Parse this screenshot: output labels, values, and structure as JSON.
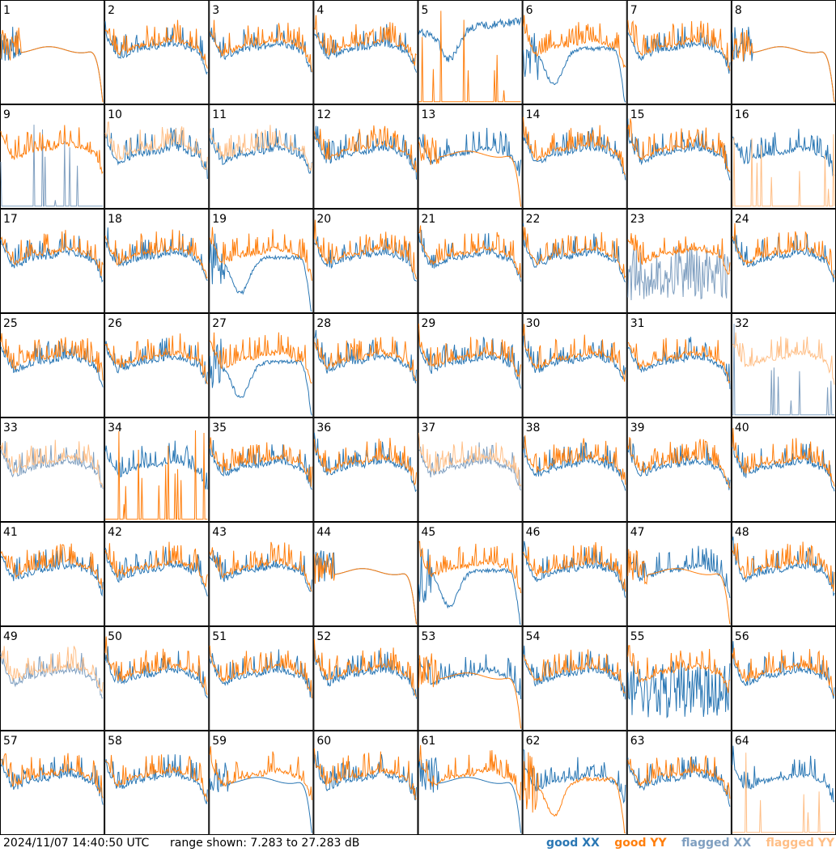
{
  "timestamp": "2024/11/07 14:40:50 UTC",
  "range_text": "range shown: 7.283 to 27.283 dB",
  "legend": {
    "good_xx": {
      "label": "good XX",
      "color": "#2a77b4"
    },
    "good_yy": {
      "label": "good YY",
      "color": "#ff7f0e"
    },
    "flagged_xx": {
      "label": "flagged XX",
      "color": "#7f9fc0"
    },
    "flagged_yy": {
      "label": "flagged YY",
      "color": "#ffbf87"
    }
  },
  "chart_data": {
    "type": "line",
    "title": "",
    "xlabel": "",
    "ylabel": "",
    "ylim": [
      7.283,
      27.283
    ],
    "grid_rows": 8,
    "grid_cols": 8,
    "series_names": [
      "good XX",
      "good YY",
      "flagged XX",
      "flagged YY"
    ],
    "panels": [
      {
        "id": "1",
        "xx": "good",
        "yy": "good",
        "yy_shape": "rolloff",
        "xx_shape": "rolloff"
      },
      {
        "id": "2",
        "xx": "good",
        "yy": "good"
      },
      {
        "id": "3",
        "xx": "good",
        "yy": "good"
      },
      {
        "id": "4",
        "xx": "good",
        "yy": "good"
      },
      {
        "id": "5",
        "xx": "good",
        "yy": "good",
        "xx_shape": "high",
        "yy_shape": "dead"
      },
      {
        "id": "6",
        "xx": "good",
        "yy": "good",
        "xx_shape": "dip"
      },
      {
        "id": "7",
        "xx": "good",
        "yy": "good"
      },
      {
        "id": "8",
        "xx": "good",
        "yy": "good",
        "yy_shape": "rolloff",
        "xx_shape": "rolloff"
      },
      {
        "id": "9",
        "xx": "flagged",
        "yy": "good",
        "xx_shape": "dead"
      },
      {
        "id": "10",
        "xx": "good",
        "yy": "flagged"
      },
      {
        "id": "11",
        "xx": "good",
        "yy": "flagged"
      },
      {
        "id": "12",
        "xx": "good",
        "yy": "good"
      },
      {
        "id": "13",
        "xx": "good",
        "yy": "good",
        "yy_shape": "rolloff"
      },
      {
        "id": "14",
        "xx": "good",
        "yy": "good"
      },
      {
        "id": "15",
        "xx": "good",
        "yy": "good"
      },
      {
        "id": "16",
        "xx": "good",
        "yy": "flagged",
        "yy_shape": "dead"
      },
      {
        "id": "17",
        "xx": "good",
        "yy": "good"
      },
      {
        "id": "18",
        "xx": "good",
        "yy": "good"
      },
      {
        "id": "19",
        "xx": "good",
        "yy": "good",
        "xx_shape": "dip"
      },
      {
        "id": "20",
        "xx": "good",
        "yy": "good"
      },
      {
        "id": "21",
        "xx": "good",
        "yy": "good"
      },
      {
        "id": "22",
        "xx": "good",
        "yy": "good"
      },
      {
        "id": "23",
        "xx": "flagged",
        "yy": "good",
        "xx_shape": "noisy"
      },
      {
        "id": "24",
        "xx": "good",
        "yy": "good"
      },
      {
        "id": "25",
        "xx": "good",
        "yy": "good"
      },
      {
        "id": "26",
        "xx": "good",
        "yy": "good"
      },
      {
        "id": "27",
        "xx": "good",
        "yy": "good",
        "xx_shape": "dip"
      },
      {
        "id": "28",
        "xx": "good",
        "yy": "good"
      },
      {
        "id": "29",
        "xx": "good",
        "yy": "good"
      },
      {
        "id": "30",
        "xx": "good",
        "yy": "good"
      },
      {
        "id": "31",
        "xx": "good",
        "yy": "good"
      },
      {
        "id": "32",
        "xx": "flagged",
        "yy": "flagged",
        "xx_shape": "dead"
      },
      {
        "id": "33",
        "xx": "flagged",
        "yy": "flagged"
      },
      {
        "id": "34",
        "xx": "good",
        "yy": "good",
        "yy_shape": "dead"
      },
      {
        "id": "35",
        "xx": "good",
        "yy": "good"
      },
      {
        "id": "36",
        "xx": "good",
        "yy": "good"
      },
      {
        "id": "37",
        "xx": "flagged",
        "yy": "flagged"
      },
      {
        "id": "38",
        "xx": "good",
        "yy": "good"
      },
      {
        "id": "39",
        "xx": "good",
        "yy": "good"
      },
      {
        "id": "40",
        "xx": "good",
        "yy": "good"
      },
      {
        "id": "41",
        "xx": "good",
        "yy": "good"
      },
      {
        "id": "42",
        "xx": "good",
        "yy": "good"
      },
      {
        "id": "43",
        "xx": "good",
        "yy": "good"
      },
      {
        "id": "44",
        "xx": "good",
        "yy": "good",
        "yy_shape": "rolloff",
        "xx_shape": "rolloff"
      },
      {
        "id": "45",
        "xx": "good",
        "yy": "good",
        "xx_shape": "dip"
      },
      {
        "id": "46",
        "xx": "good",
        "yy": "good"
      },
      {
        "id": "47",
        "xx": "good",
        "yy": "good",
        "yy_shape": "rolloff"
      },
      {
        "id": "48",
        "xx": "good",
        "yy": "good"
      },
      {
        "id": "49",
        "xx": "flagged",
        "yy": "flagged"
      },
      {
        "id": "50",
        "xx": "good",
        "yy": "good"
      },
      {
        "id": "51",
        "xx": "good",
        "yy": "good"
      },
      {
        "id": "52",
        "xx": "good",
        "yy": "good"
      },
      {
        "id": "53",
        "xx": "good",
        "yy": "good",
        "yy_shape": "rolloff"
      },
      {
        "id": "54",
        "xx": "good",
        "yy": "good"
      },
      {
        "id": "55",
        "xx": "good",
        "yy": "good",
        "xx_shape": "noisy"
      },
      {
        "id": "56",
        "xx": "good",
        "yy": "good"
      },
      {
        "id": "57",
        "xx": "good",
        "yy": "good"
      },
      {
        "id": "58",
        "xx": "good",
        "yy": "good"
      },
      {
        "id": "59",
        "xx": "good",
        "yy": "good",
        "xx_shape": "rolloff"
      },
      {
        "id": "60",
        "xx": "good",
        "yy": "good"
      },
      {
        "id": "61",
        "xx": "good",
        "yy": "good",
        "xx_shape": "rolloff"
      },
      {
        "id": "62",
        "xx": "good",
        "yy": "good",
        "yy_shape": "dip"
      },
      {
        "id": "63",
        "xx": "good",
        "yy": "good"
      },
      {
        "id": "64",
        "xx": "good",
        "yy": "flagged",
        "yy_shape": "dead"
      }
    ]
  }
}
